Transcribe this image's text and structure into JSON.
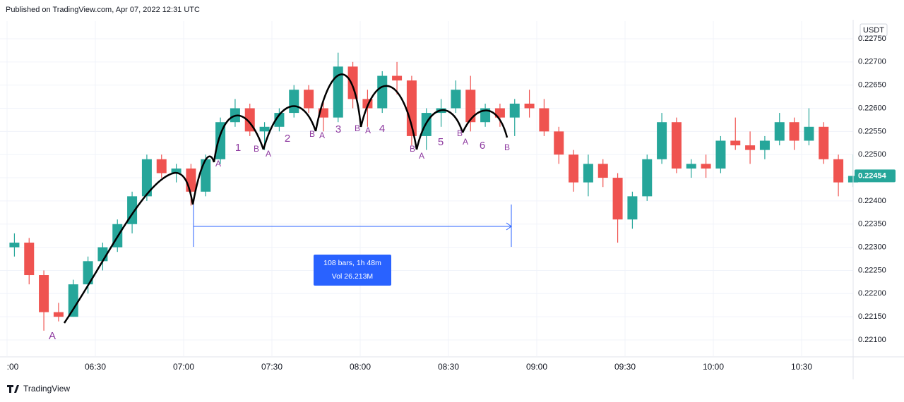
{
  "header": "Published on TradingView.com, Apr 07, 2022 12:31 UTC",
  "footer": "TradingView",
  "chart_data": {
    "type": "candlestick",
    "currency": "USDT",
    "x": [
      "06:00",
      "06:05",
      "06:10",
      "06:15",
      "06:20",
      "06:25",
      "06:30",
      "06:35",
      "06:40",
      "06:45",
      "06:50",
      "06:55",
      "07:00",
      "07:05",
      "07:10",
      "07:15",
      "07:20",
      "07:25",
      "07:30",
      "07:35",
      "07:40",
      "07:45",
      "07:50",
      "07:55",
      "08:00",
      "08:05",
      "08:10",
      "08:15",
      "08:20",
      "08:25",
      "08:30",
      "08:35",
      "08:40",
      "08:45",
      "08:50",
      "08:55",
      "09:00",
      "09:05",
      "09:10",
      "09:15",
      "09:20",
      "09:25",
      "09:30",
      "09:35",
      "09:40",
      "09:45",
      "09:50",
      "09:55",
      "10:00",
      "10:05",
      "10:10",
      "10:15",
      "10:20",
      "10:25",
      "10:30",
      "10:35",
      "10:40",
      "10:45"
    ],
    "open": [
      0.223,
      0.2231,
      0.2224,
      0.2216,
      0.2215,
      0.2222,
      0.2227,
      0.223,
      0.2235,
      0.2241,
      0.2249,
      0.2246,
      0.2247,
      0.2242,
      0.2249,
      0.2257,
      0.226,
      0.2255,
      0.2256,
      0.2259,
      0.2264,
      0.226,
      0.2258,
      0.2269,
      0.2262,
      0.226,
      0.2267,
      0.2266,
      0.2254,
      0.2259,
      0.226,
      0.2264,
      0.2257,
      0.226,
      0.2258,
      0.2261,
      0.226,
      0.2255,
      0.225,
      0.2244,
      0.2248,
      0.2245,
      0.2236,
      0.2241,
      0.2249,
      0.2257,
      0.2247,
      0.2248,
      0.2247,
      0.2253,
      0.2252,
      0.2251,
      0.2253,
      0.2257,
      0.2253,
      0.2256,
      0.2249,
      0.2244
    ],
    "high": [
      0.2233,
      0.2232,
      0.2225,
      0.2218,
      0.2223,
      0.2228,
      0.2231,
      0.2236,
      0.2242,
      0.225,
      0.225,
      0.2248,
      0.2248,
      0.225,
      0.2258,
      0.2262,
      0.2261,
      0.2257,
      0.226,
      0.2265,
      0.2265,
      0.2262,
      0.2272,
      0.227,
      0.2264,
      0.2268,
      0.227,
      0.2267,
      0.226,
      0.2262,
      0.2266,
      0.2267,
      0.2261,
      0.2261,
      0.2262,
      0.2264,
      0.2262,
      0.2256,
      0.2251,
      0.225,
      0.2249,
      0.2246,
      0.2242,
      0.225,
      0.2259,
      0.2258,
      0.2249,
      0.225,
      0.2254,
      0.2258,
      0.2255,
      0.2254,
      0.2259,
      0.2258,
      0.226,
      0.2257,
      0.225,
      0.225
    ],
    "low": [
      0.2228,
      0.2222,
      0.2212,
      0.2214,
      0.2215,
      0.222,
      0.2225,
      0.2229,
      0.2233,
      0.224,
      0.2245,
      0.2244,
      0.2239,
      0.2241,
      0.2248,
      0.2256,
      0.2254,
      0.2251,
      0.2255,
      0.2258,
      0.2259,
      0.2255,
      0.2257,
      0.226,
      0.2256,
      0.2259,
      0.2263,
      0.2252,
      0.2251,
      0.2256,
      0.2259,
      0.2255,
      0.2256,
      0.2256,
      0.2254,
      0.2258,
      0.2254,
      0.2248,
      0.2242,
      0.2241,
      0.2243,
      0.2231,
      0.2234,
      0.224,
      0.2248,
      0.2246,
      0.2245,
      0.2245,
      0.2246,
      0.2251,
      0.2248,
      0.2249,
      0.2252,
      0.2251,
      0.2252,
      0.2248,
      0.2241,
      0.2243
    ],
    "close": [
      0.2231,
      0.2224,
      0.2216,
      0.2215,
      0.2222,
      0.2227,
      0.223,
      0.2235,
      0.2241,
      0.2249,
      0.2246,
      0.2247,
      0.2242,
      0.2249,
      0.2257,
      0.226,
      0.2255,
      0.2256,
      0.2259,
      0.2264,
      0.226,
      0.2258,
      0.2269,
      0.2262,
      0.226,
      0.2267,
      0.2266,
      0.2254,
      0.2259,
      0.226,
      0.2264,
      0.2257,
      0.226,
      0.2258,
      0.2261,
      0.226,
      0.2255,
      0.225,
      0.2244,
      0.2248,
      0.2245,
      0.2236,
      0.2241,
      0.2249,
      0.2257,
      0.2247,
      0.2248,
      0.2247,
      0.2253,
      0.2252,
      0.2251,
      0.2253,
      0.2257,
      0.2253,
      0.2256,
      0.2249,
      0.2244,
      0.22454
    ],
    "up_color": "#26a69a",
    "down_color": "#ef5350",
    "ylim": [
      0.22065,
      0.22788
    ],
    "yticks": [
      {
        "value": 0.221,
        "label": "0.22100"
      },
      {
        "value": 0.2215,
        "label": "0.22150"
      },
      {
        "value": 0.222,
        "label": "0.22200"
      },
      {
        "value": 0.2225,
        "label": "0.22250"
      },
      {
        "value": 0.223,
        "label": "0.22300"
      },
      {
        "value": 0.2235,
        "label": "0.22350"
      },
      {
        "value": 0.224,
        "label": "0.22400"
      },
      {
        "value": 0.2245,
        "label": "0.22450"
      },
      {
        "value": 0.225,
        "label": "0.22500"
      },
      {
        "value": 0.2255,
        "label": "0.22550"
      },
      {
        "value": 0.226,
        "label": "0.22600"
      },
      {
        "value": 0.2265,
        "label": "0.22650"
      },
      {
        "value": 0.227,
        "label": "0.22700"
      },
      {
        "value": 0.2275,
        "label": "0.22750"
      }
    ],
    "xticks": [
      {
        "value": "06:00",
        "label": ":00"
      },
      "06:30",
      "07:00",
      "07:30",
      "08:00",
      "08:30",
      "09:00",
      "09:30",
      "10:00",
      "10:30"
    ],
    "grid": true,
    "annotations": [
      "A",
      "A",
      "1",
      "B",
      "A",
      "2",
      "B",
      "A",
      "3",
      "B",
      "A",
      "4",
      "B",
      "A",
      "5",
      "B",
      "A",
      "6",
      "B"
    ],
    "measure": [
      "108 bars, 1h 48m",
      "Vol 26.213M"
    ]
  }
}
